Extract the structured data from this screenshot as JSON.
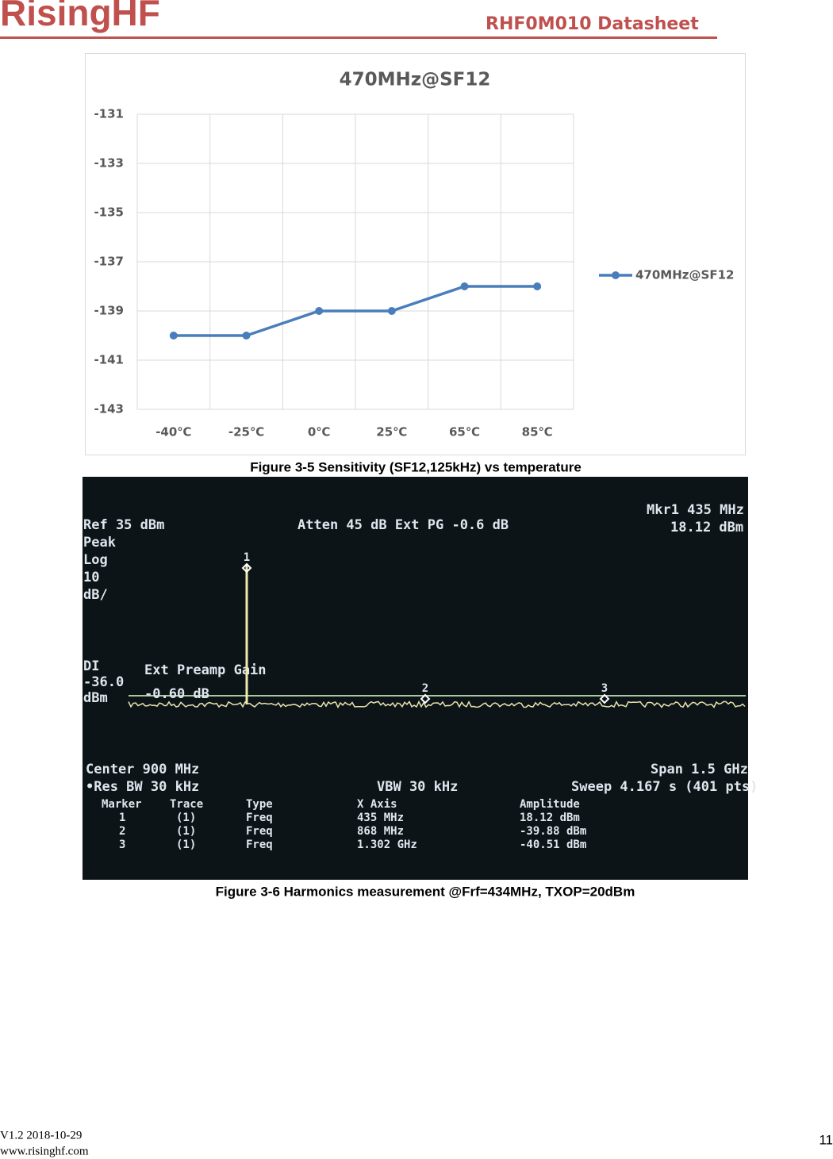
{
  "header": {
    "brand": "RisingHF",
    "title": "RHF0M010 Datasheet"
  },
  "chart_data": {
    "type": "line",
    "title": "470MHz@SF12",
    "categories": [
      "-40℃",
      "-25℃",
      "0℃",
      "25℃",
      "65℃",
      "85℃"
    ],
    "series": [
      {
        "name": "470MHz@SF12",
        "color": "#4a7ebb",
        "values": [
          -140,
          -140,
          -139,
          -139,
          -138,
          -138
        ]
      }
    ],
    "ylim": [
      -143,
      -131
    ],
    "yticks": [
      -131,
      -133,
      -135,
      -137,
      -139,
      -141,
      -143
    ],
    "grid": true,
    "legend": "right"
  },
  "figure1_caption": "Figure 3-5 Sensitivity (SF12,125kHz) vs temperature",
  "spectrum": {
    "ref": "Ref 35 dBm",
    "peak": "Peak",
    "log": "Log",
    "scale": "10",
    "scale_unit": "dB/",
    "atten": "Atten 45 dB  Ext PG -0.6 dB",
    "mkr_freq": "Mkr1  435 MHz",
    "mkr_amp": "18.12 dBm",
    "dl": "DI",
    "dl_value": "-36.0",
    "dl_unit": "dBm",
    "overlay_title": "Ext Preamp Gain",
    "overlay_value": "-0.60 dB",
    "center": "Center 900 MHz",
    "res_bw": "•Res BW 30 kHz",
    "vbw": "VBW 30 kHz",
    "span": "Span 1.5 GHz",
    "sweep": "Sweep 4.167 s (401 pts)",
    "markers": [
      "1",
      "2",
      "3"
    ],
    "table": {
      "header": [
        "Marker",
        "Trace",
        "Type",
        "X Axis",
        "Amplitude"
      ],
      "rows": [
        [
          "1",
          "(1)",
          "Freq",
          "435 MHz",
          "18.12 dBm"
        ],
        [
          "2",
          "(1)",
          "Freq",
          "868 MHz",
          "-39.88 dBm"
        ],
        [
          "3",
          "(1)",
          "Freq",
          "1.302 GHz",
          "-40.51 dBm"
        ]
      ]
    }
  },
  "figure2_caption": "Figure 3-6 Harmonics measurement @Frf=434MHz, TXOP=20dBm",
  "footer": {
    "version": "V1.2 2018-10-29",
    "website": "www.risinghf.com",
    "page": "11"
  }
}
